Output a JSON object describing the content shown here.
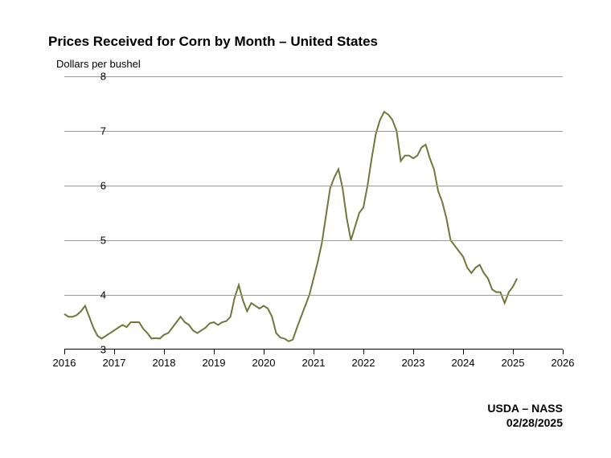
{
  "chart": {
    "type": "line",
    "title": "Prices Received for Corn by Month – United States",
    "ylabel": "Dollars per bushel",
    "ylim": [
      3,
      8
    ],
    "yticks": [
      3,
      4,
      5,
      6,
      7,
      8
    ],
    "xticks": [
      2016,
      2017,
      2018,
      2019,
      2020,
      2021,
      2022,
      2023,
      2024,
      2025,
      2026
    ],
    "xlim": [
      2016,
      2026
    ],
    "line_color": "#6b7a3a",
    "line_width": 2,
    "grid_color": "#999999",
    "background_color": "#ffffff",
    "title_fontsize": 17,
    "label_fontsize": 13,
    "tick_fontsize": 13,
    "series": {
      "x": [
        2016.0,
        2016.083,
        2016.167,
        2016.25,
        2016.333,
        2016.417,
        2016.5,
        2016.583,
        2016.667,
        2016.75,
        2016.833,
        2016.917,
        2017.0,
        2017.083,
        2017.167,
        2017.25,
        2017.333,
        2017.417,
        2017.5,
        2017.583,
        2017.667,
        2017.75,
        2017.833,
        2017.917,
        2018.0,
        2018.083,
        2018.167,
        2018.25,
        2018.333,
        2018.417,
        2018.5,
        2018.583,
        2018.667,
        2018.75,
        2018.833,
        2018.917,
        2019.0,
        2019.083,
        2019.167,
        2019.25,
        2019.333,
        2019.417,
        2019.5,
        2019.583,
        2019.667,
        2019.75,
        2019.833,
        2019.917,
        2020.0,
        2020.083,
        2020.167,
        2020.25,
        2020.333,
        2020.417,
        2020.5,
        2020.583,
        2020.667,
        2020.75,
        2020.833,
        2020.917,
        2021.0,
        2021.083,
        2021.167,
        2021.25,
        2021.333,
        2021.417,
        2021.5,
        2021.583,
        2021.667,
        2021.75,
        2021.833,
        2021.917,
        2022.0,
        2022.083,
        2022.167,
        2022.25,
        2022.333,
        2022.417,
        2022.5,
        2022.583,
        2022.667,
        2022.75,
        2022.833,
        2022.917,
        2023.0,
        2023.083,
        2023.167,
        2023.25,
        2023.333,
        2023.417,
        2023.5,
        2023.583,
        2023.667,
        2023.75,
        2023.833,
        2023.917,
        2024.0,
        2024.083,
        2024.167,
        2024.25,
        2024.333,
        2024.417,
        2024.5,
        2024.583,
        2024.667,
        2024.75,
        2024.833,
        2024.917,
        2025.0,
        2025.083
      ],
      "y": [
        3.65,
        3.6,
        3.6,
        3.63,
        3.7,
        3.8,
        3.6,
        3.4,
        3.25,
        3.2,
        3.25,
        3.3,
        3.35,
        3.4,
        3.45,
        3.41,
        3.5,
        3.5,
        3.5,
        3.38,
        3.3,
        3.2,
        3.21,
        3.2,
        3.27,
        3.3,
        3.4,
        3.5,
        3.6,
        3.5,
        3.45,
        3.35,
        3.3,
        3.35,
        3.4,
        3.48,
        3.5,
        3.45,
        3.5,
        3.52,
        3.6,
        3.95,
        4.18,
        3.9,
        3.7,
        3.85,
        3.8,
        3.75,
        3.8,
        3.75,
        3.6,
        3.3,
        3.22,
        3.2,
        3.15,
        3.18,
        3.4,
        3.6,
        3.8,
        4.0,
        4.3,
        4.6,
        4.95,
        5.45,
        5.95,
        6.15,
        6.3,
        5.95,
        5.4,
        5.0,
        5.25,
        5.5,
        5.6,
        6.0,
        6.5,
        6.95,
        7.2,
        7.35,
        7.3,
        7.2,
        7.0,
        6.45,
        6.55,
        6.55,
        6.5,
        6.55,
        6.7,
        6.75,
        6.5,
        6.3,
        5.9,
        5.7,
        5.4,
        5.0,
        4.9,
        4.8,
        4.7,
        4.5,
        4.4,
        4.5,
        4.55,
        4.4,
        4.3,
        4.1,
        4.05,
        4.05,
        3.85,
        4.05,
        4.15,
        4.3
      ]
    }
  },
  "footer": {
    "source": "USDA – NASS",
    "date": "02/28/2025"
  }
}
